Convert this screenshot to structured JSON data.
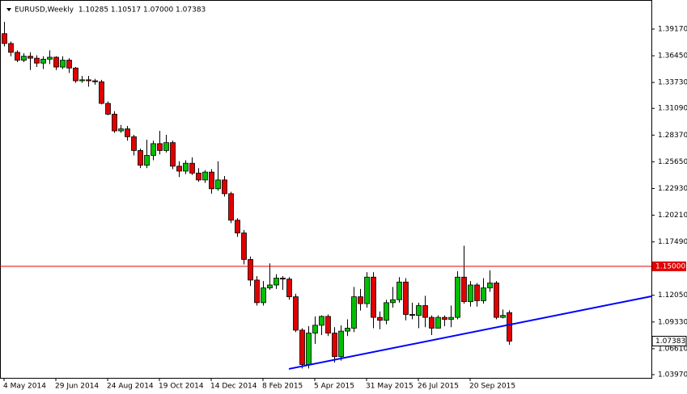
{
  "chart_data": {
    "type": "candlestick",
    "header": "EURUSD,Weekly  1.10285 1.10517 1.07000 1.07383",
    "categories": [
      "4 May 2014",
      null,
      null,
      null,
      null,
      null,
      null,
      null,
      "29 Jun 2014",
      null,
      null,
      null,
      null,
      null,
      null,
      null,
      "24 Aug 2014",
      null,
      null,
      null,
      null,
      null,
      null,
      null,
      "19 Oct 2014",
      null,
      null,
      null,
      null,
      null,
      null,
      null,
      "14 Dec 2014",
      null,
      null,
      null,
      null,
      null,
      null,
      null,
      "8 Feb 2015",
      null,
      null,
      null,
      null,
      null,
      null,
      null,
      "5 Apr 2015",
      null,
      null,
      null,
      null,
      null,
      null,
      null,
      "31 May 2015",
      null,
      null,
      null,
      null,
      null,
      null,
      null,
      "26 Jul 2015",
      null,
      null,
      null,
      null,
      null,
      null,
      null,
      "20 Sep 2015",
      null,
      null,
      null,
      null,
      null,
      null
    ],
    "open": [
      1.387,
      1.377,
      1.368,
      1.36,
      1.364,
      1.362,
      1.357,
      1.361,
      1.363,
      1.353,
      1.36,
      1.352,
      1.339,
      1.34,
      1.339,
      1.338,
      1.316,
      1.305,
      1.288,
      1.29,
      1.282,
      1.268,
      1.253,
      1.263,
      1.275,
      1.268,
      1.276,
      1.252,
      1.247,
      1.255,
      1.245,
      1.238,
      1.246,
      1.229,
      1.238,
      1.224,
      1.197,
      1.184,
      1.157,
      1.136,
      1.113,
      1.128,
      1.131,
      1.138,
      1.137,
      1.119,
      1.085,
      1.05,
      1.082,
      1.09,
      1.099,
      1.082,
      1.058,
      1.084,
      1.087,
      1.119,
      1.112,
      1.139,
      1.098,
      1.095,
      1.113,
      1.116,
      1.134,
      1.101,
      1.1,
      1.11,
      1.098,
      1.087,
      1.098,
      1.096,
      1.098,
      1.139,
      1.114,
      1.131,
      1.115,
      1.128,
      1.133,
      1.098,
      1.10285
    ],
    "high": [
      1.399,
      1.379,
      1.37,
      1.367,
      1.368,
      1.365,
      1.364,
      1.37,
      1.364,
      1.364,
      1.362,
      1.353,
      1.344,
      1.344,
      1.341,
      1.34,
      1.318,
      1.308,
      1.294,
      1.293,
      1.284,
      1.27,
      1.279,
      1.278,
      1.288,
      1.284,
      1.278,
      1.257,
      1.258,
      1.261,
      1.25,
      1.248,
      1.249,
      1.257,
      1.242,
      1.226,
      1.199,
      1.187,
      1.16,
      1.14,
      1.135,
      1.153,
      1.142,
      1.14,
      1.139,
      1.122,
      1.087,
      1.089,
      1.099,
      1.1,
      1.101,
      1.088,
      1.09,
      1.096,
      1.129,
      1.127,
      1.144,
      1.144,
      1.104,
      1.116,
      1.129,
      1.139,
      1.138,
      1.113,
      1.113,
      1.12,
      1.1,
      1.1,
      1.1,
      1.11,
      1.145,
      1.171,
      1.135,
      1.133,
      1.138,
      1.146,
      1.135,
      1.106,
      1.10517
    ],
    "low": [
      1.374,
      1.364,
      1.358,
      1.358,
      1.35,
      1.353,
      1.351,
      1.356,
      1.35,
      1.351,
      1.347,
      1.337,
      1.337,
      1.333,
      1.335,
      1.315,
      1.304,
      1.286,
      1.286,
      1.278,
      1.263,
      1.25,
      1.25,
      1.258,
      1.264,
      1.266,
      1.249,
      1.241,
      1.244,
      1.243,
      1.236,
      1.235,
      1.224,
      1.227,
      1.221,
      1.194,
      1.18,
      1.152,
      1.13,
      1.11,
      1.11,
      1.126,
      1.127,
      1.126,
      1.116,
      1.083,
      1.046,
      1.046,
      1.071,
      1.08,
      1.079,
      1.052,
      1.054,
      1.079,
      1.083,
      1.105,
      1.108,
      1.087,
      1.086,
      1.091,
      1.108,
      1.113,
      1.095,
      1.096,
      1.087,
      1.088,
      1.08,
      1.087,
      1.089,
      1.088,
      1.096,
      1.112,
      1.109,
      1.109,
      1.112,
      1.124,
      1.096,
      1.097,
      1.07
    ],
    "close": [
      1.377,
      1.368,
      1.36,
      1.364,
      1.362,
      1.357,
      1.361,
      1.363,
      1.353,
      1.36,
      1.352,
      1.339,
      1.34,
      1.339,
      1.338,
      1.316,
      1.305,
      1.288,
      1.29,
      1.282,
      1.268,
      1.253,
      1.263,
      1.275,
      1.268,
      1.276,
      1.252,
      1.247,
      1.255,
      1.245,
      1.238,
      1.246,
      1.229,
      1.238,
      1.224,
      1.197,
      1.184,
      1.157,
      1.136,
      1.113,
      1.128,
      1.131,
      1.138,
      1.137,
      1.119,
      1.085,
      1.05,
      1.082,
      1.09,
      1.099,
      1.082,
      1.058,
      1.084,
      1.087,
      1.119,
      1.112,
      1.139,
      1.098,
      1.095,
      1.113,
      1.116,
      1.134,
      1.101,
      1.1,
      1.11,
      1.098,
      1.087,
      1.098,
      1.096,
      1.098,
      1.139,
      1.114,
      1.131,
      1.115,
      1.128,
      1.133,
      1.098,
      1.1,
      1.07383
    ],
    "up_color": "#00c000",
    "down_color": "#e00000",
    "ylim": [
      1.0364,
      1.4213
    ],
    "yticks": [
      {
        "value": 1.3917,
        "label": "1.39170"
      },
      {
        "value": 1.3645,
        "label": "1.36450"
      },
      {
        "value": 1.3373,
        "label": "1.33730"
      },
      {
        "value": 1.3109,
        "label": "1.31090"
      },
      {
        "value": 1.2837,
        "label": "1.28370"
      },
      {
        "value": 1.2565,
        "label": "1.25650"
      },
      {
        "value": 1.2293,
        "label": "1.22930"
      },
      {
        "value": 1.2021,
        "label": "1.20210"
      },
      {
        "value": 1.1749,
        "label": "1.17490"
      },
      {
        "value": 1.1205,
        "label": "1.12050"
      },
      {
        "value": 1.0933,
        "label": "1.09330"
      },
      {
        "value": 1.0661,
        "label": "1.06610"
      },
      {
        "value": 1.0397,
        "label": "1.03970"
      }
    ],
    "hline": {
      "value": 1.15,
      "label": "1.15000",
      "color": "#e00000"
    },
    "trendline": {
      "start": [
        44,
        1.0455
      ],
      "end": [
        100,
        1.1195
      ],
      "color": "#0000ff"
    }
  }
}
